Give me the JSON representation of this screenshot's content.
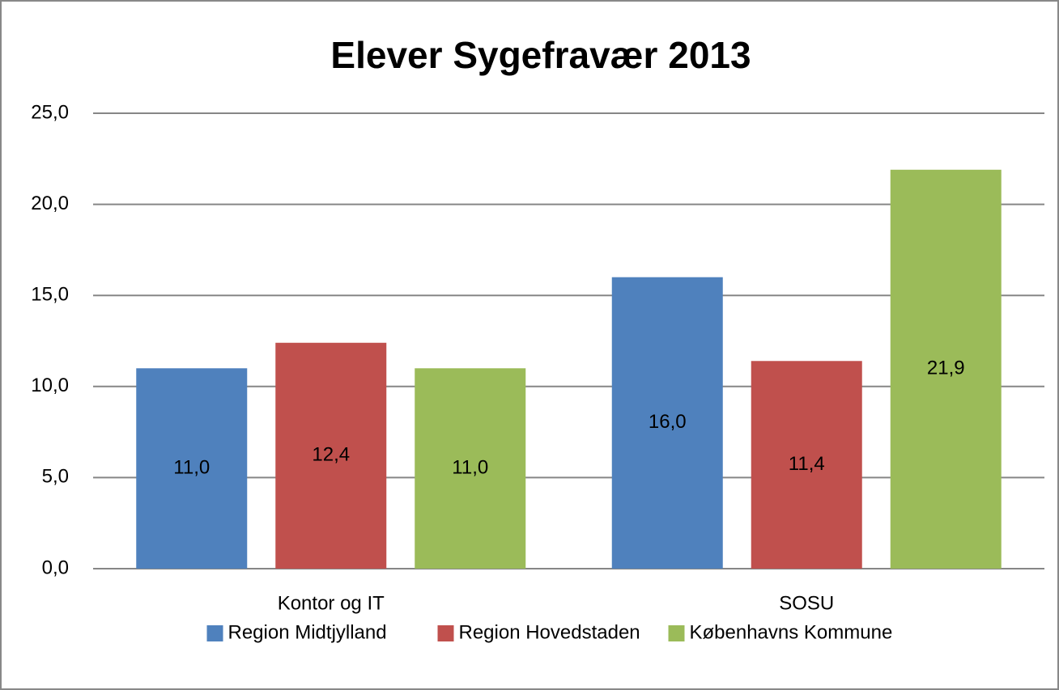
{
  "chart_data": {
    "type": "bar",
    "title": "Elever Sygefravær 2013",
    "categories": [
      "Kontor og IT",
      "SOSU"
    ],
    "series": [
      {
        "name": "Region Midtjylland",
        "color": "#4f81bd",
        "values": [
          11.0,
          16.0
        ],
        "value_labels": [
          "11,0",
          "16,0"
        ]
      },
      {
        "name": "Region Hovedstaden",
        "color": "#c0504d",
        "values": [
          12.4,
          11.4
        ],
        "value_labels": [
          "12,4",
          "11,4"
        ]
      },
      {
        "name": "Københavns Kommune",
        "color": "#9bbb59",
        "values": [
          11.0,
          21.9
        ],
        "value_labels": [
          "11,0",
          "21,9"
        ]
      }
    ],
    "ylim": [
      0,
      25
    ],
    "yticks": [
      {
        "value": 0,
        "label": "0,0"
      },
      {
        "value": 5,
        "label": "5,0"
      },
      {
        "value": 10,
        "label": "10,0"
      },
      {
        "value": 15,
        "label": "15,0"
      },
      {
        "value": 20,
        "label": "20,0"
      },
      {
        "value": 25,
        "label": "25,0"
      }
    ],
    "grid": true,
    "legend": "bottom"
  }
}
